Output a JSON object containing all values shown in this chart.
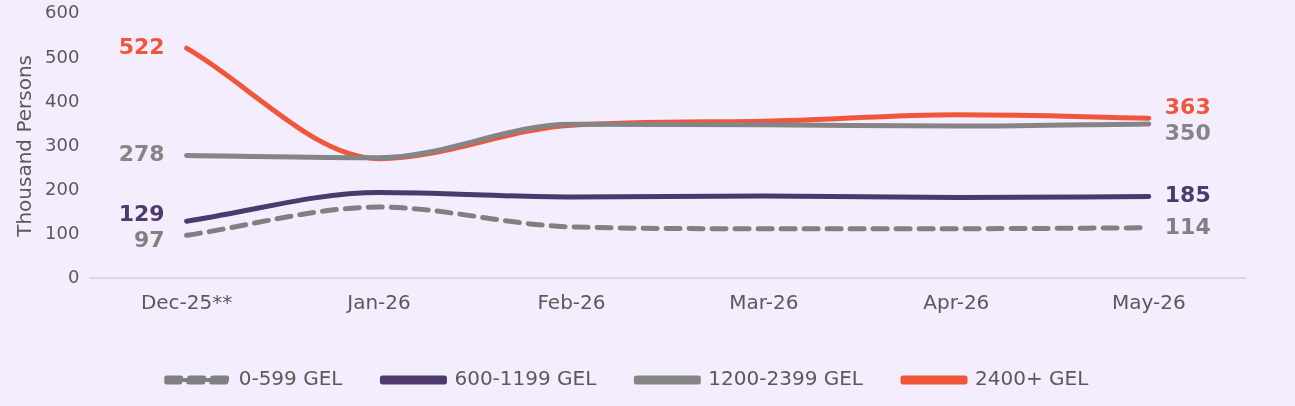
{
  "chart_data": {
    "type": "line",
    "ylabel": "Thousand Persons",
    "categories": [
      "Dec-25**",
      "Jan-26",
      "Feb-26",
      "Mar-26",
      "Apr-26",
      "May-26"
    ],
    "ylim": [
      0,
      600
    ],
    "yticks": [
      0,
      100,
      200,
      300,
      400,
      500,
      600
    ],
    "grid": false,
    "legend": "bottom",
    "marker": "none",
    "series": [
      {
        "name": "0-599 GEL",
        "color": "#808080",
        "line_style": "dashed",
        "values": [
          97,
          161,
          116,
          112,
          112,
          114
        ],
        "value_labels": [
          "97",
          null,
          null,
          null,
          null,
          "114"
        ]
      },
      {
        "name": "600-1199 GEL",
        "color": "#4b3a6b",
        "line_style": "solid",
        "values": [
          129,
          194,
          184,
          186,
          183,
          185
        ],
        "value_labels": [
          "129",
          null,
          null,
          null,
          null,
          "185"
        ]
      },
      {
        "name": "1200-2399 GEL",
        "color": "#858585",
        "line_style": "solid",
        "values": [
          278,
          273,
          349,
          348,
          345,
          350
        ],
        "value_labels": [
          "278",
          null,
          null,
          null,
          null,
          "350"
        ]
      },
      {
        "name": "2400+ GEL",
        "color": "#f0573a",
        "line_style": "solid",
        "values": [
          522,
          271,
          347,
          356,
          371,
          363
        ],
        "value_labels": [
          "522",
          null,
          null,
          null,
          null,
          "363"
        ]
      }
    ]
  }
}
